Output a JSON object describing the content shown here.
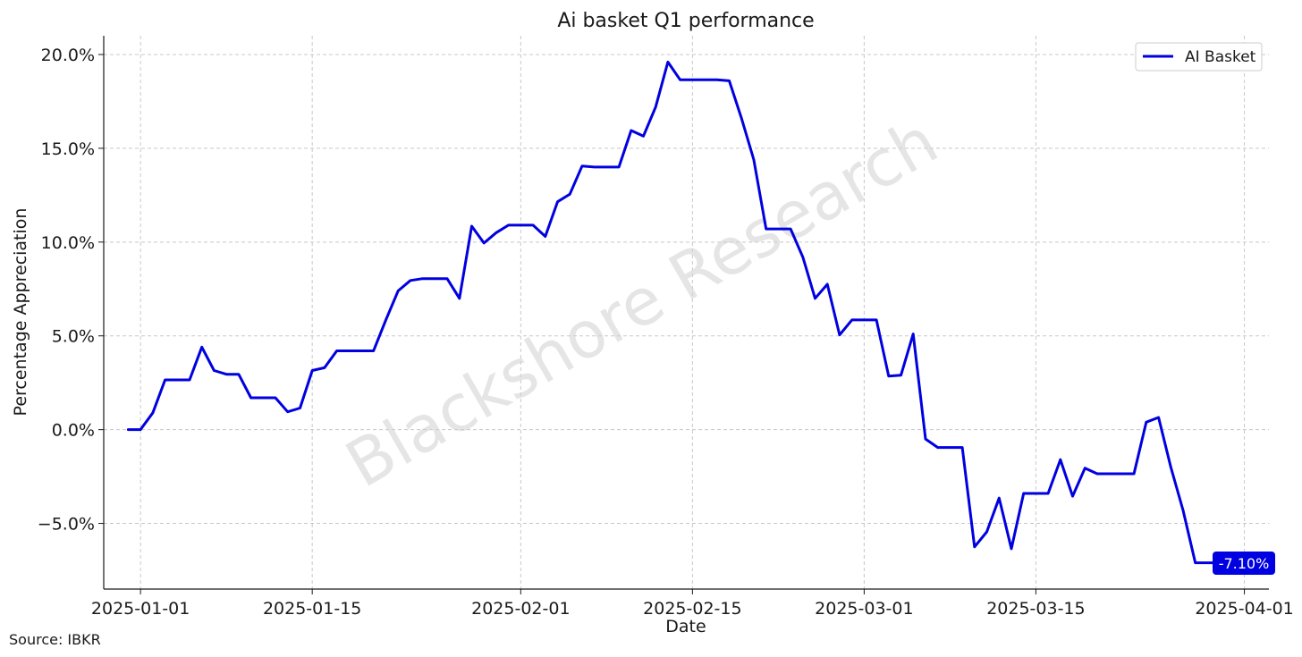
{
  "chart_data": {
    "type": "line",
    "title": "Ai basket Q1 performance",
    "xlabel": "Date",
    "ylabel": "Percentage Appreciation",
    "x_ticks": [
      "2025-01-01",
      "2025-01-15",
      "2025-02-01",
      "2025-02-15",
      "2025-03-01",
      "2025-03-15",
      "2025-04-01"
    ],
    "y_ticks": [
      "20.0%",
      "15.0%",
      "10.0%",
      "5.0%",
      "0.0%",
      "−5.0%"
    ],
    "ylim": [
      -8.5,
      21.0
    ],
    "xlim": [
      "2024-12-29",
      "2025-04-03"
    ],
    "grid": true,
    "legend_position": "top-right",
    "watermark": "Blackshore Research",
    "end_label": "-7.10%",
    "series": [
      {
        "name": "AI Basket",
        "color": "#0000e0",
        "points": [
          [
            "2024-12-31",
            0.0
          ],
          [
            "2025-01-01",
            0.0
          ],
          [
            "2025-01-02",
            0.9
          ],
          [
            "2025-01-03",
            2.65
          ],
          [
            "2025-01-04",
            2.65
          ],
          [
            "2025-01-05",
            2.65
          ],
          [
            "2025-01-06",
            4.4
          ],
          [
            "2025-01-07",
            3.15
          ],
          [
            "2025-01-08",
            2.95
          ],
          [
            "2025-01-09",
            2.95
          ],
          [
            "2025-01-10",
            1.7
          ],
          [
            "2025-01-11",
            1.7
          ],
          [
            "2025-01-12",
            1.7
          ],
          [
            "2025-01-13",
            0.95
          ],
          [
            "2025-01-14",
            1.15
          ],
          [
            "2025-01-15",
            3.15
          ],
          [
            "2025-01-16",
            3.3
          ],
          [
            "2025-01-17",
            4.2
          ],
          [
            "2025-01-18",
            4.2
          ],
          [
            "2025-01-19",
            4.2
          ],
          [
            "2025-01-20",
            4.2
          ],
          [
            "2025-01-21",
            5.85
          ],
          [
            "2025-01-22",
            7.4
          ],
          [
            "2025-01-23",
            7.95
          ],
          [
            "2025-01-24",
            8.05
          ],
          [
            "2025-01-25",
            8.05
          ],
          [
            "2025-01-26",
            8.05
          ],
          [
            "2025-01-27",
            7.0
          ],
          [
            "2025-01-28",
            10.85
          ],
          [
            "2025-01-29",
            9.95
          ],
          [
            "2025-01-30",
            10.5
          ],
          [
            "2025-01-31",
            10.9
          ],
          [
            "2025-02-01",
            10.9
          ],
          [
            "2025-02-02",
            10.9
          ],
          [
            "2025-02-03",
            10.3
          ],
          [
            "2025-02-04",
            12.15
          ],
          [
            "2025-02-05",
            12.55
          ],
          [
            "2025-02-06",
            14.05
          ],
          [
            "2025-02-07",
            14.0
          ],
          [
            "2025-02-08",
            14.0
          ],
          [
            "2025-02-09",
            14.0
          ],
          [
            "2025-02-10",
            15.95
          ],
          [
            "2025-02-11",
            15.65
          ],
          [
            "2025-02-12",
            17.2
          ],
          [
            "2025-02-13",
            19.6
          ],
          [
            "2025-02-14",
            18.65
          ],
          [
            "2025-02-15",
            18.65
          ],
          [
            "2025-02-16",
            18.65
          ],
          [
            "2025-02-17",
            18.65
          ],
          [
            "2025-02-18",
            18.6
          ],
          [
            "2025-02-19",
            16.6
          ],
          [
            "2025-02-20",
            14.4
          ],
          [
            "2025-02-21",
            10.7
          ],
          [
            "2025-02-22",
            10.7
          ],
          [
            "2025-02-23",
            10.7
          ],
          [
            "2025-02-24",
            9.2
          ],
          [
            "2025-02-25",
            7.0
          ],
          [
            "2025-02-26",
            7.75
          ],
          [
            "2025-02-27",
            5.05
          ],
          [
            "2025-02-28",
            5.85
          ],
          [
            "2025-03-01",
            5.85
          ],
          [
            "2025-03-02",
            5.85
          ],
          [
            "2025-03-03",
            2.85
          ],
          [
            "2025-03-04",
            2.9
          ],
          [
            "2025-03-05",
            5.1
          ],
          [
            "2025-03-06",
            -0.5
          ],
          [
            "2025-03-07",
            -0.95
          ],
          [
            "2025-03-08",
            -0.95
          ],
          [
            "2025-03-09",
            -0.95
          ],
          [
            "2025-03-10",
            -6.25
          ],
          [
            "2025-03-11",
            -5.45
          ],
          [
            "2025-03-12",
            -3.65
          ],
          [
            "2025-03-13",
            -6.35
          ],
          [
            "2025-03-14",
            -3.4
          ],
          [
            "2025-03-15",
            -3.4
          ],
          [
            "2025-03-16",
            -3.4
          ],
          [
            "2025-03-17",
            -1.6
          ],
          [
            "2025-03-18",
            -3.55
          ],
          [
            "2025-03-19",
            -2.05
          ],
          [
            "2025-03-20",
            -2.35
          ],
          [
            "2025-03-21",
            -2.35
          ],
          [
            "2025-03-22",
            -2.35
          ],
          [
            "2025-03-23",
            -2.35
          ],
          [
            "2025-03-24",
            0.4
          ],
          [
            "2025-03-25",
            0.65
          ],
          [
            "2025-03-26",
            -2.0
          ],
          [
            "2025-03-27",
            -4.3
          ],
          [
            "2025-03-28",
            -7.1
          ],
          [
            "2025-03-29",
            -7.1
          ],
          [
            "2025-03-30",
            -7.1
          ]
        ]
      }
    ]
  },
  "footer": {
    "source": "Source: IBKR"
  }
}
